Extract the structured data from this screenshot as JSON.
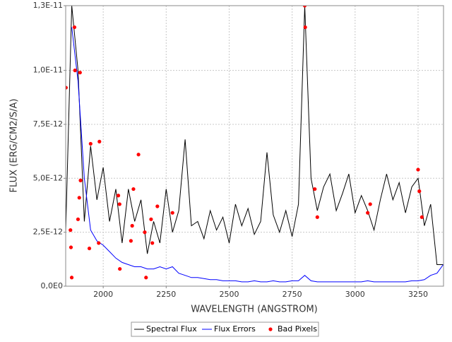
{
  "chart_data": {
    "type": "line",
    "x_label": "WAVELENGTH (ANGSTROM)",
    "y_label": "FLUX (ERG/CM2/S/A)",
    "xlim": [
      1851,
      3351
    ],
    "ylim": [
      0,
      1.3e-11
    ],
    "xticks": [
      2000,
      2250,
      2500,
      2750,
      3000,
      3250
    ],
    "yticks": [
      {
        "value": 0,
        "label": "0,0E0"
      },
      {
        "value": 2.5e-12,
        "label": "2,5E-12"
      },
      {
        "value": 5e-12,
        "label": "5,0E-12"
      },
      {
        "value": 7.5e-12,
        "label": "7,5E-12"
      },
      {
        "value": 1e-11,
        "label": "1,0E-11"
      },
      {
        "value": 1.3e-11,
        "label": "1,3E-11"
      }
    ],
    "grid": true,
    "legend": "bottom",
    "series": [
      {
        "name": "Spectral Flux",
        "color": "#000000",
        "style": "line",
        "x": [
          1850,
          1875,
          1900,
          1925,
          1950,
          1975,
          2000,
          2025,
          2050,
          2075,
          2100,
          2125,
          2150,
          2175,
          2200,
          2225,
          2250,
          2275,
          2300,
          2325,
          2350,
          2375,
          2400,
          2425,
          2450,
          2475,
          2500,
          2525,
          2550,
          2575,
          2600,
          2625,
          2650,
          2675,
          2700,
          2725,
          2750,
          2775,
          2800,
          2825,
          2850,
          2875,
          2900,
          2925,
          2950,
          2975,
          3000,
          3025,
          3050,
          3075,
          3100,
          3125,
          3150,
          3175,
          3200,
          3225,
          3250,
          3275,
          3300,
          3325,
          3350
        ],
        "values": [
          2e-12,
          1.3e-11,
          1e-11,
          3e-12,
          6.5e-12,
          4e-12,
          5.5e-12,
          3e-12,
          4.5e-12,
          2e-12,
          4.5e-12,
          3e-12,
          4e-12,
          1.5e-12,
          3e-12,
          2e-12,
          4.5e-12,
          2.5e-12,
          3.5e-12,
          6.8e-12,
          2.8e-12,
          3e-12,
          2.2e-12,
          3.5e-12,
          2.6e-12,
          3.2e-12,
          2e-12,
          3.8e-12,
          2.8e-12,
          3.6e-12,
          2.4e-12,
          3e-12,
          6.2e-12,
          3.3e-12,
          2.5e-12,
          3.5e-12,
          2.3e-12,
          3.8e-12,
          1.3e-11,
          5e-12,
          3.5e-12,
          4.6e-12,
          5.2e-12,
          3.5e-12,
          4.3e-12,
          5.2e-12,
          3.4e-12,
          4.2e-12,
          3.5e-12,
          2.6e-12,
          4e-12,
          5.2e-12,
          4e-12,
          4.8e-12,
          3.4e-12,
          4.6e-12,
          5e-12,
          2.8e-12,
          3.8e-12,
          1e-12,
          1e-12
        ]
      },
      {
        "name": "Flux Errors",
        "color": "#0000ff",
        "style": "line",
        "x": [
          1850,
          1875,
          1900,
          1925,
          1950,
          1975,
          2000,
          2025,
          2050,
          2075,
          2100,
          2125,
          2150,
          2175,
          2200,
          2225,
          2250,
          2275,
          2300,
          2325,
          2350,
          2375,
          2400,
          2425,
          2450,
          2475,
          2500,
          2525,
          2550,
          2575,
          2600,
          2625,
          2650,
          2675,
          2700,
          2725,
          2750,
          2775,
          2800,
          2825,
          2850,
          2875,
          2900,
          2925,
          2950,
          2975,
          3000,
          3025,
          3050,
          3075,
          3100,
          3125,
          3150,
          3175,
          3200,
          3225,
          3250,
          3275,
          3300,
          3325,
          3350
        ],
        "values": [
          null,
          1.2e-11,
          9.5e-12,
          5e-12,
          2.6e-12,
          2.1e-12,
          1.9e-12,
          1.6e-12,
          1.3e-12,
          1.1e-12,
          1e-12,
          9e-13,
          9e-13,
          8e-13,
          8e-13,
          9e-13,
          8e-13,
          9e-13,
          6e-13,
          5e-13,
          4e-13,
          4e-13,
          3.5e-13,
          3e-13,
          3e-13,
          2.5e-13,
          2.5e-13,
          2.5e-13,
          2e-13,
          2e-13,
          2.5e-13,
          2e-13,
          2e-13,
          2.5e-13,
          2e-13,
          2e-13,
          2.5e-13,
          2.5e-13,
          5e-13,
          2.5e-13,
          2e-13,
          2e-13,
          2e-13,
          2e-13,
          2e-13,
          2e-13,
          2e-13,
          2e-13,
          2.5e-13,
          2e-13,
          2e-13,
          2e-13,
          2e-13,
          2e-13,
          2e-13,
          2.5e-13,
          2.5e-13,
          3e-13,
          5e-13,
          6e-13,
          1e-12
        ]
      },
      {
        "name": "Bad Pixels",
        "color": "#ff0000",
        "style": "markers",
        "x": [
          1852,
          1870,
          1872,
          1875,
          1886,
          1888,
          1900,
          1905,
          1910,
          1908,
          1950,
          1945,
          1985,
          1982,
          2060,
          2065,
          2066,
          2110,
          2115,
          2120,
          2140,
          2165,
          2170,
          2190,
          2195,
          2215,
          2275,
          2800,
          2802,
          2840,
          2850,
          3050,
          3060,
          3250,
          3255,
          3265
        ],
        "values": [
          9.2e-12,
          2.6e-12,
          1.8e-12,
          4e-13,
          1.2e-11,
          1e-11,
          3.1e-12,
          4.1e-12,
          4.9e-12,
          9.9e-12,
          6.6e-12,
          1.75e-12,
          6.7e-12,
          2e-12,
          4.2e-12,
          3.8e-12,
          8e-13,
          2.1e-12,
          2.8e-12,
          4.5e-12,
          6.1e-12,
          2.5e-12,
          4e-13,
          3.1e-12,
          2e-12,
          3.7e-12,
          3.4e-12,
          1.3e-11,
          1.2e-11,
          4.5e-12,
          3.2e-12,
          3.4e-12,
          3.8e-12,
          5.4e-12,
          4.4e-12,
          3.2e-12
        ]
      }
    ]
  }
}
